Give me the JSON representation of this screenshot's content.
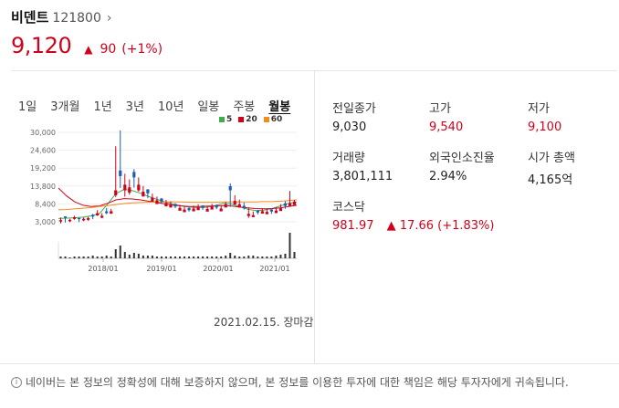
{
  "stock": {
    "name": "비덴트",
    "code": "121800",
    "chevron": "›",
    "price": "9,120",
    "change_arrow": "▲",
    "change": "90",
    "change_pct": "(+1%)"
  },
  "tabs": [
    "1일",
    "3개월",
    "1년",
    "3년",
    "10년",
    "일봉",
    "주봉",
    "월봉"
  ],
  "active_tab": "월봉",
  "legend": [
    {
      "label": "5",
      "color": "#3fae49"
    },
    {
      "label": "20",
      "color": "#d0021b"
    },
    {
      "label": "60",
      "color": "#f28a1e"
    }
  ],
  "chart_data": {
    "type": "candlestick",
    "y_axis_labels": [
      "30,000",
      "24,600",
      "19,200",
      "13,800",
      "8,400",
      "3,000"
    ],
    "x_axis_labels": [
      "2018/01",
      "2019/01",
      "2020/01",
      "2021/01"
    ],
    "date_note": "2021.02.15. 장마감"
  },
  "stats": {
    "prev_close": {
      "label": "전일종가",
      "value": "9,030"
    },
    "high": {
      "label": "고가",
      "value": "9,540"
    },
    "low": {
      "label": "저가",
      "value": "9,100"
    },
    "volume": {
      "label": "거래량",
      "value": "3,801,111"
    },
    "foreign": {
      "label": "외국인소진율",
      "value": "2.94%"
    },
    "market_cap": {
      "label": "시가 총액",
      "value": "4,165억"
    }
  },
  "index": {
    "name": "코스닥",
    "value": "981.97",
    "arrow": "▲",
    "change": "17.66 (+1.83%)"
  },
  "notice": "네이버는 본 정보의 정확성에 대해 보증하지 않으며, 본 정보를 이용한 투자에 대한 책임은 해당 투자자에게 귀속됩니다.",
  "colors": {
    "up": "#d0021b",
    "down": "#1a5fb4"
  }
}
